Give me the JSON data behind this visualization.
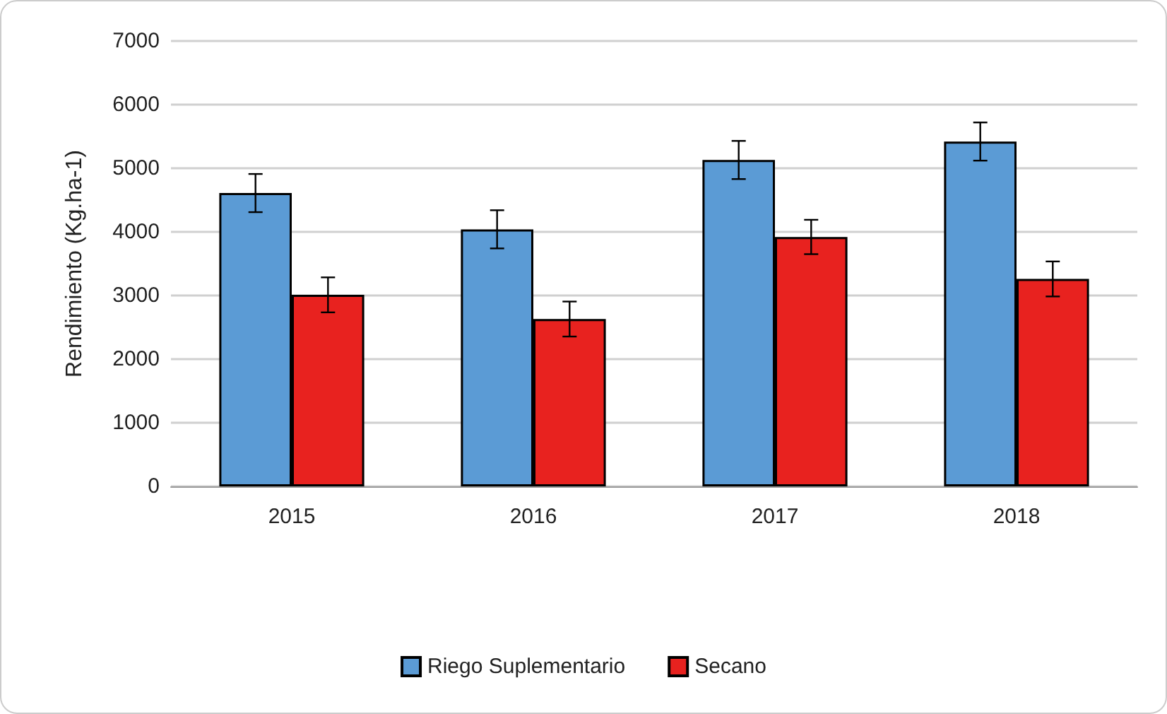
{
  "chart_data": {
    "type": "bar",
    "ylabel": "Rendimiento (Kg.ha-1)",
    "categories": [
      "2015",
      "2016",
      "2017",
      "2018"
    ],
    "series": [
      {
        "name": "Riego Suplementario",
        "color": "#5b9bd5",
        "values": [
          4610,
          4040,
          5130,
          5420
        ],
        "errors": [
          300,
          300,
          300,
          300
        ]
      },
      {
        "name": "Secano",
        "color": "#e8221f",
        "values": [
          3010,
          2630,
          3920,
          3260
        ],
        "errors": [
          275,
          275,
          270,
          275
        ]
      }
    ],
    "ylim": [
      0,
      7000
    ],
    "yticks": [
      0,
      1000,
      2000,
      3000,
      4000,
      5000,
      6000,
      7000
    ],
    "grid": "y",
    "legend": "bottom"
  }
}
